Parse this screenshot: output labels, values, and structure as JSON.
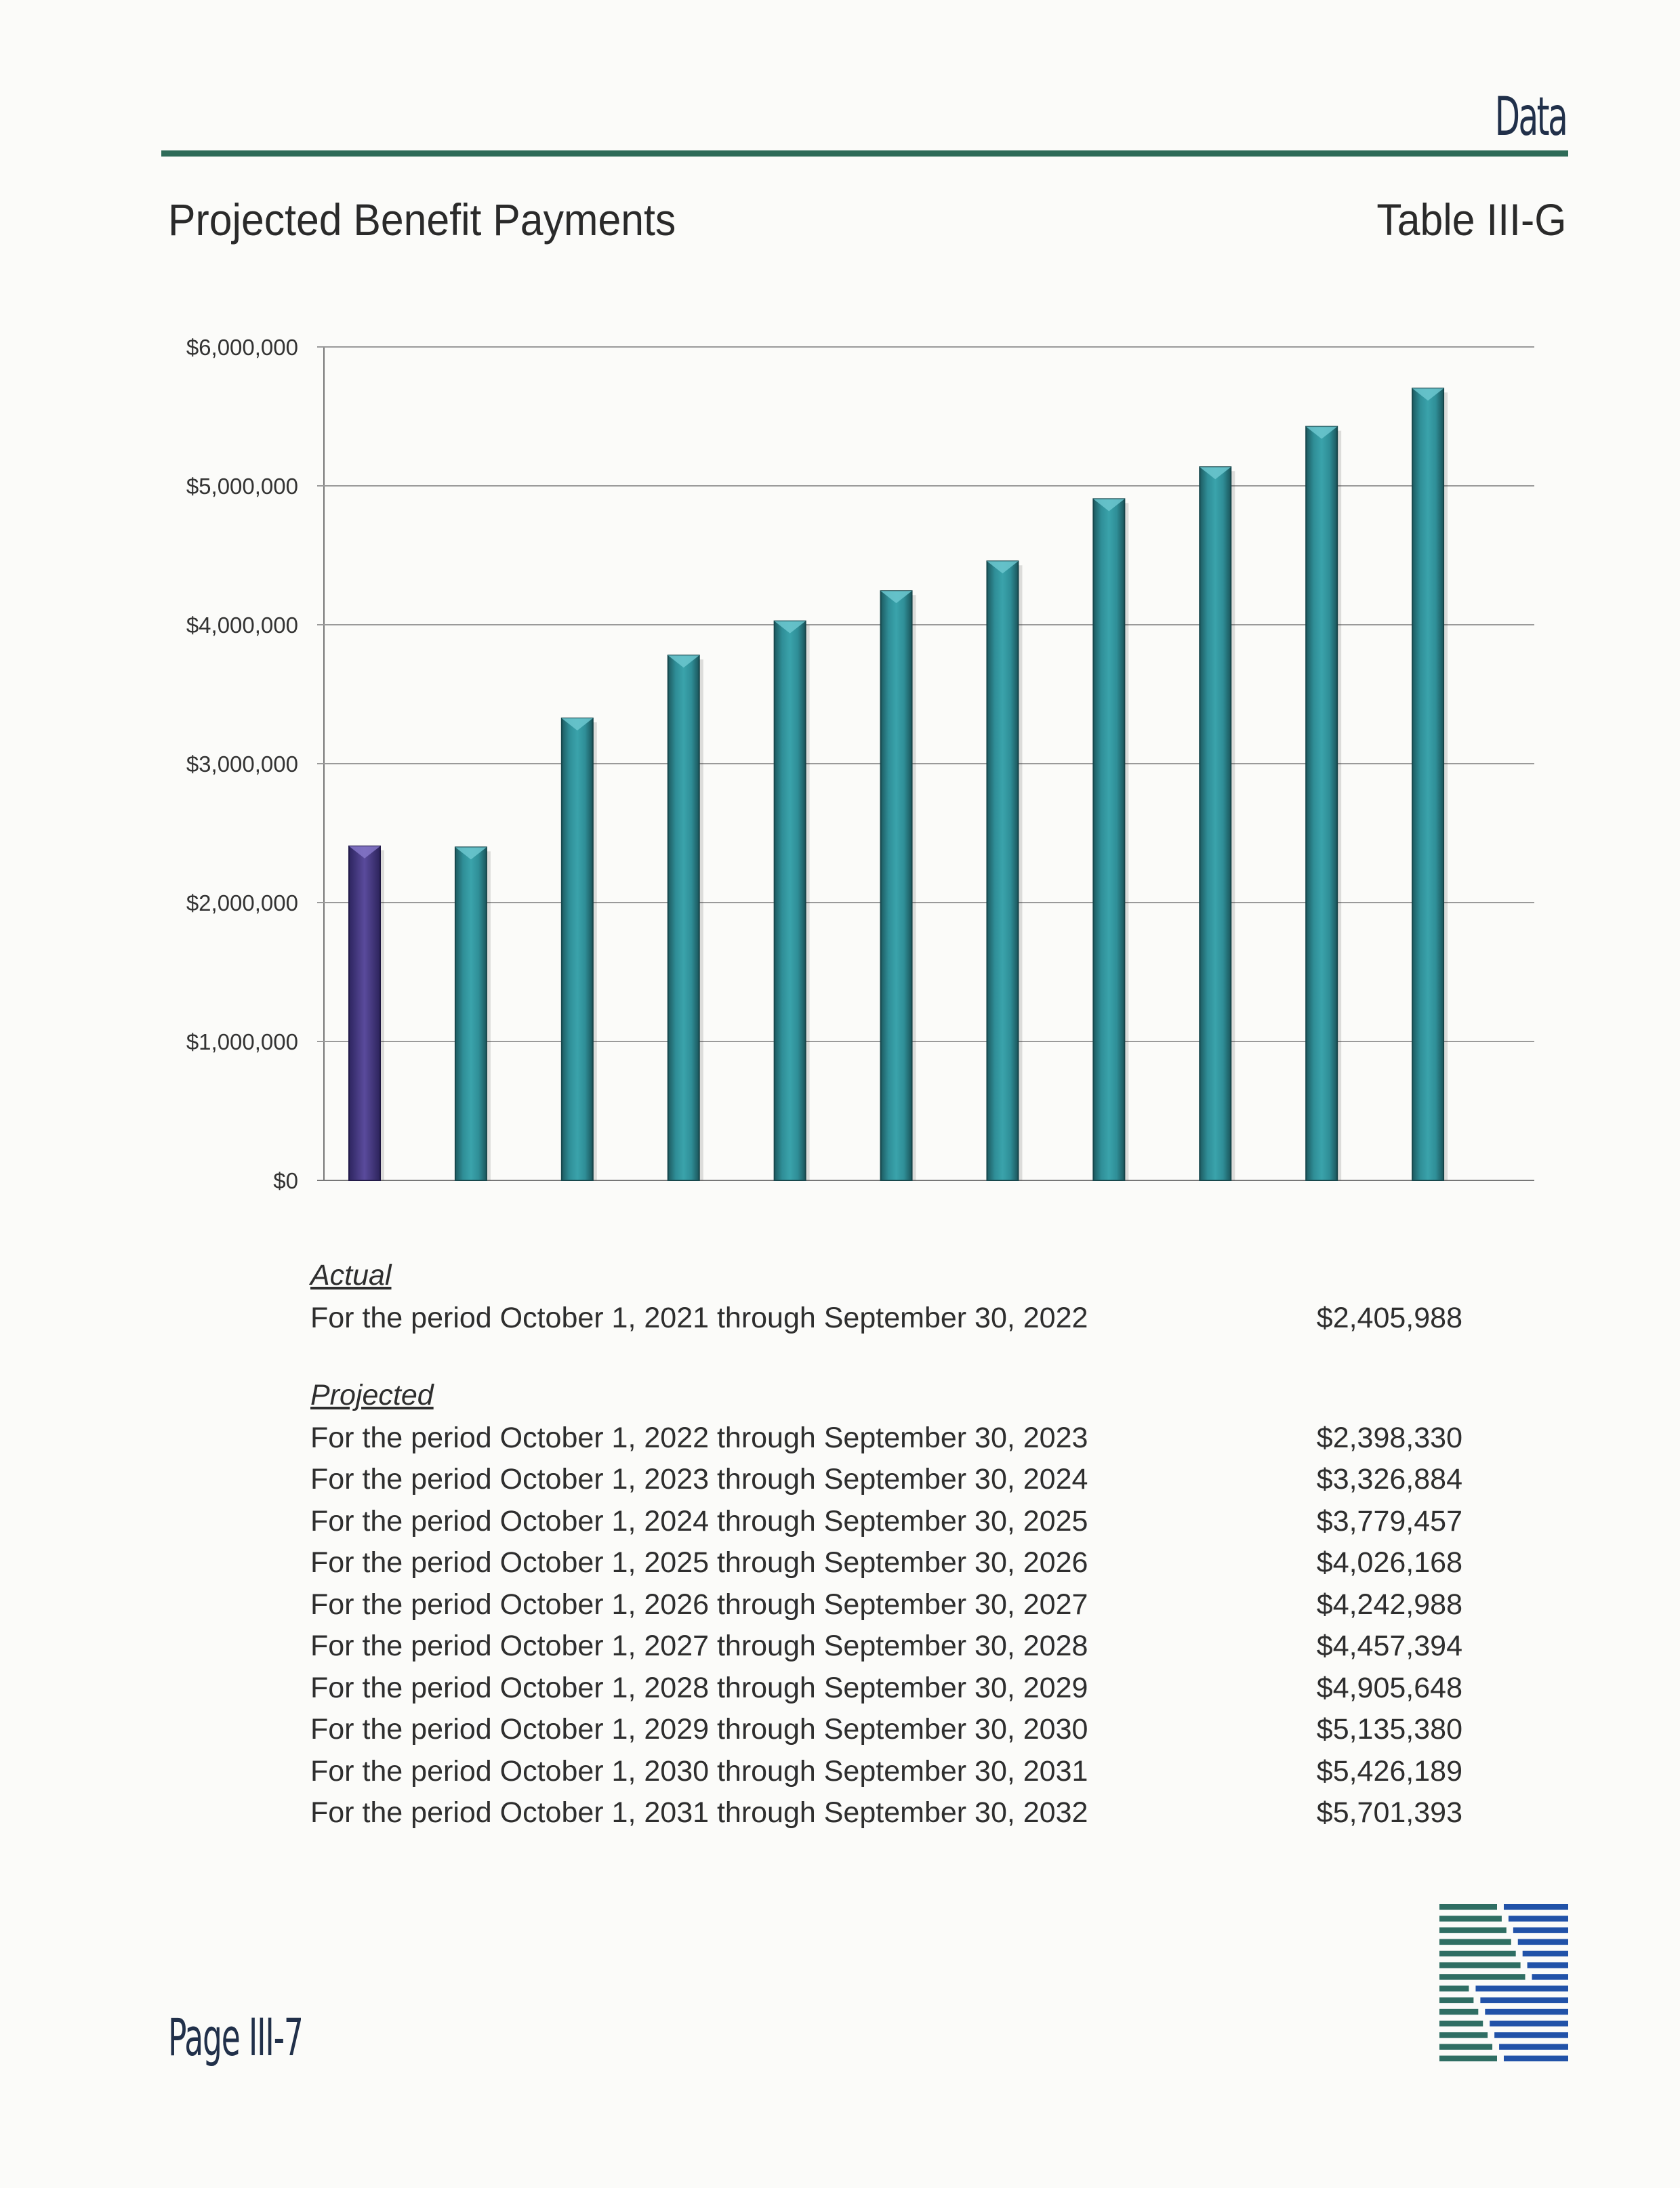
{
  "header": {
    "section": "Data",
    "title": "Projected Benefit Payments",
    "table_id": "Table III-G"
  },
  "chart_data": {
    "type": "bar",
    "title": "",
    "xlabel": "",
    "ylabel": "",
    "ylim": [
      0,
      6000000
    ],
    "yticks": [
      {
        "value": 0,
        "label": "$0"
      },
      {
        "value": 1000000,
        "label": "$1,000,000"
      },
      {
        "value": 2000000,
        "label": "$2,000,000"
      },
      {
        "value": 3000000,
        "label": "$3,000,000"
      },
      {
        "value": 4000000,
        "label": "$4,000,000"
      },
      {
        "value": 5000000,
        "label": "$5,000,000"
      },
      {
        "value": 6000000,
        "label": "$6,000,000"
      }
    ],
    "grid": true,
    "legend": "none",
    "colors": {
      "actual": "#4b3d87",
      "projected": "#2e8c94"
    },
    "bars": [
      {
        "value": 2405988,
        "kind": "actual"
      },
      {
        "value": 2398330,
        "kind": "projected"
      },
      {
        "value": 3326884,
        "kind": "projected"
      },
      {
        "value": 3779457,
        "kind": "projected"
      },
      {
        "value": 4026168,
        "kind": "projected"
      },
      {
        "value": 4242988,
        "kind": "projected"
      },
      {
        "value": 4457394,
        "kind": "projected"
      },
      {
        "value": 4905648,
        "kind": "projected"
      },
      {
        "value": 5135380,
        "kind": "projected"
      },
      {
        "value": 5426189,
        "kind": "projected"
      },
      {
        "value": 5701393,
        "kind": "projected"
      }
    ]
  },
  "actual": {
    "heading": "Actual",
    "rows": [
      {
        "label": "For the period October 1, 2021 through September 30, 2022",
        "value": "$2,405,988"
      }
    ]
  },
  "projected": {
    "heading": "Projected",
    "rows": [
      {
        "label": "For the period October 1, 2022 through September 30, 2023",
        "value": "$2,398,330"
      },
      {
        "label": "For the period October 1, 2023 through September 30, 2024",
        "value": "$3,326,884"
      },
      {
        "label": "For the period October 1, 2024 through September 30, 2025",
        "value": "$3,779,457"
      },
      {
        "label": "For the period October 1, 2025 through September 30, 2026",
        "value": "$4,026,168"
      },
      {
        "label": "For the period October 1, 2026 through September 30, 2027",
        "value": "$4,242,988"
      },
      {
        "label": "For the period October 1, 2027 through September 30, 2028",
        "value": "$4,457,394"
      },
      {
        "label": "For the period October 1, 2028 through September 30, 2029",
        "value": "$4,905,648"
      },
      {
        "label": "For the period October 1, 2029 through September 30, 2030",
        "value": "$5,135,380"
      },
      {
        "label": "For the period October 1, 2030 through September 30, 2031",
        "value": "$5,426,189"
      },
      {
        "label": "For the period October 1, 2031 through September 30, 2032",
        "value": "$5,701,393"
      }
    ]
  },
  "footer": {
    "page": "Page III-7",
    "logo_icon": "striped-s-logo-icon"
  }
}
